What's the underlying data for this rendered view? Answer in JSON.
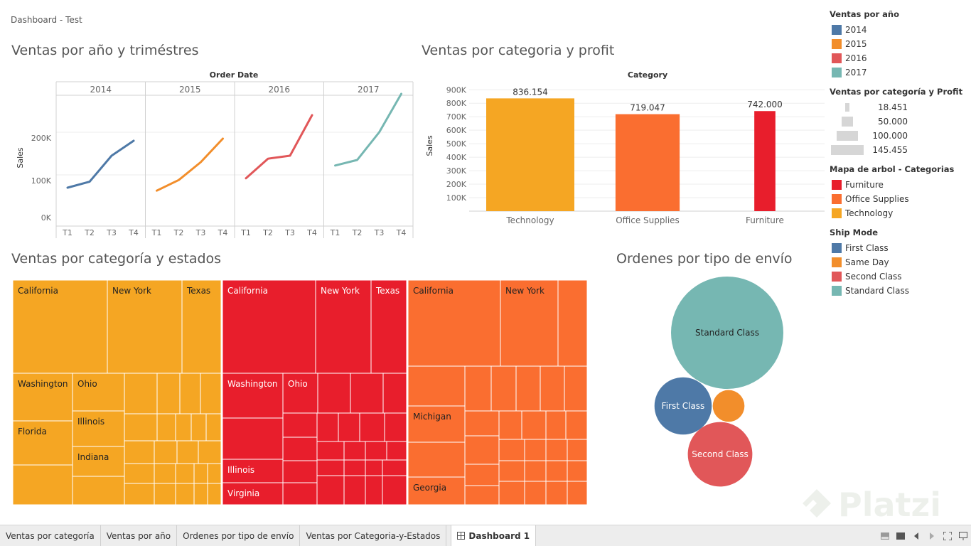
{
  "dashboard_title": "Dashboard - Test",
  "sheets": {
    "line": {
      "title": "Ventas por año y triméstres",
      "header": "Order Date",
      "ylabel": "Sales",
      "ticks": [
        "200K",
        "100K",
        "0K"
      ]
    },
    "bar": {
      "title": "Ventas por categoria y profit",
      "header": "Category",
      "ylabel": "Sales",
      "ticks": [
        "900K",
        "800K",
        "700K",
        "600K",
        "500K",
        "400K",
        "300K",
        "200K",
        "100K"
      ]
    },
    "treemap": {
      "title": "Ventas por categoría y estados"
    },
    "bubble": {
      "title": "Ordenes por tipo de envío"
    }
  },
  "chart_data": [
    {
      "type": "line",
      "xlabel": "Order Date",
      "ylabel": "Sales",
      "ylim": [
        0,
        290000
      ],
      "panels": [
        "2014",
        "2015",
        "2016",
        "2017"
      ],
      "categories": [
        "T1",
        "T2",
        "T3",
        "T4"
      ],
      "series": [
        {
          "name": "2014",
          "color": "#4e79a7",
          "values": [
            70000,
            84000,
            145000,
            180000
          ]
        },
        {
          "name": "2015",
          "color": "#f28e2b",
          "values": [
            63000,
            88000,
            130000,
            185000
          ]
        },
        {
          "name": "2016",
          "color": "#e15759",
          "values": [
            92000,
            138000,
            145000,
            240000
          ]
        },
        {
          "name": "2017",
          "color": "#76b7b2",
          "values": [
            122000,
            135000,
            200000,
            290000
          ]
        }
      ]
    },
    {
      "type": "bar",
      "xlabel": "Category",
      "ylabel": "Sales",
      "ylim": [
        0,
        950000
      ],
      "categories": [
        "Technology",
        "Office Supplies",
        "Furniture"
      ],
      "values": [
        836154,
        719047,
        742000
      ],
      "labels": [
        "836.154",
        "719.047",
        "742.000"
      ],
      "colors": [
        "#f5a623",
        "#fa6e30",
        "#e81e2c"
      ],
      "profit": [
        145455,
        100000,
        18451
      ]
    },
    {
      "type": "treemap",
      "groups": [
        {
          "category": "Technology",
          "color": "#f5a623",
          "labels": [
            "California",
            "New York",
            "Texas",
            "Washington",
            "Ohio",
            "Florida",
            "Illinois",
            "Indiana"
          ]
        },
        {
          "category": "Furniture",
          "color": "#e81e2c",
          "labels": [
            "California",
            "New York",
            "Texas",
            "Washington",
            "Ohio",
            "Illinois",
            "Virginia"
          ]
        },
        {
          "category": "Office Supplies",
          "color": "#fa6e30",
          "labels": [
            "California",
            "New York",
            "Michigan",
            "Georgia"
          ]
        }
      ]
    },
    {
      "type": "bubble",
      "bubbles": [
        {
          "name": "Standard Class",
          "label": "Standard Class",
          "color": "#76b7b2",
          "size": 1.0
        },
        {
          "name": "First Class",
          "label": "First Class",
          "color": "#4e79a7",
          "size": 0.26
        },
        {
          "name": "Same Day",
          "label": "",
          "color": "#f28e2b",
          "size": 0.08
        },
        {
          "name": "Second Class",
          "label": "Second Class",
          "color": "#e15759",
          "size": 0.33
        }
      ]
    }
  ],
  "legends": {
    "year": {
      "title": "Ventas por año",
      "items": [
        {
          "label": "2014",
          "color": "#4e79a7"
        },
        {
          "label": "2015",
          "color": "#f28e2b"
        },
        {
          "label": "2016",
          "color": "#e15759"
        },
        {
          "label": "2017",
          "color": "#76b7b2"
        }
      ]
    },
    "size": {
      "title": "Ventas por categoría y Profit",
      "items": [
        {
          "label": "18.451"
        },
        {
          "label": "50.000"
        },
        {
          "label": "100.000"
        },
        {
          "label": "145.455"
        }
      ]
    },
    "category": {
      "title": "Mapa de arbol - Categorias",
      "items": [
        {
          "label": "Furniture",
          "color": "#e81e2c"
        },
        {
          "label": "Office Supplies",
          "color": "#fa6e30"
        },
        {
          "label": "Technology",
          "color": "#f5a623"
        }
      ]
    },
    "shipmode": {
      "title": "Ship Mode",
      "items": [
        {
          "label": "First Class",
          "color": "#4e79a7"
        },
        {
          "label": "Same Day",
          "color": "#f28e2b"
        },
        {
          "label": "Second Class",
          "color": "#e15759"
        },
        {
          "label": "Standard Class",
          "color": "#76b7b2"
        }
      ]
    }
  },
  "tabs": [
    {
      "label": "Ventas por categoría"
    },
    {
      "label": "Ventas por año"
    },
    {
      "label": "Ordenes por tipo de envío"
    },
    {
      "label": "Ventas por Categoria-y-Estados"
    },
    {
      "label": "Dashboard 1",
      "active": true
    }
  ],
  "watermark": "Platzi"
}
